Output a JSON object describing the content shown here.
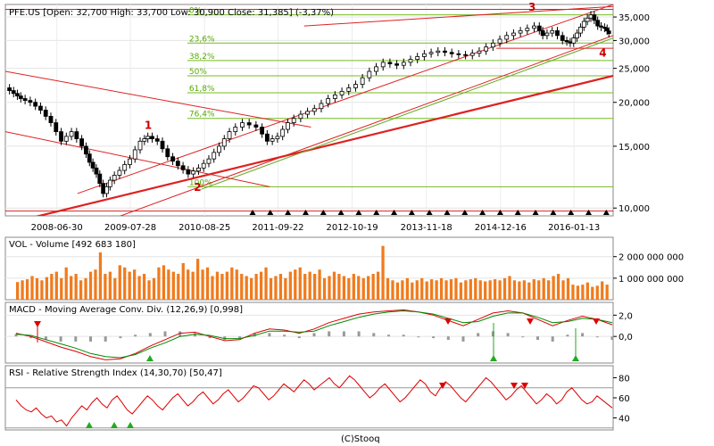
{
  "chart_data": [
    {
      "type": "line",
      "panel": "price",
      "title": "PFE.US [Open: 32,700  High: 33,700  Low: 30,900  Close: 31,385] (-3,37%)",
      "scale": "log",
      "ylim": [
        9.5,
        38
      ],
      "yticks": [
        "35,000",
        "30,000",
        "25,000",
        "20,000",
        "15,000",
        "10,000"
      ],
      "ytick_values": [
        35,
        30,
        25,
        20,
        15,
        10
      ],
      "xticks": [
        "2008-06-30",
        "2009-07-28",
        "2010-08-25",
        "2011-09-22",
        "2012-10-19",
        "2013-11-18",
        "2014-12-16",
        "2016-01-13"
      ],
      "xtick_years": [
        2008.5,
        2009.57,
        2010.65,
        2011.72,
        2012.8,
        2013.88,
        2014.96,
        2016.03
      ],
      "xlim": [
        2007.75,
        2016.6
      ],
      "series": [
        {
          "values": [
            {
              "x": 2007.78,
              "y": 22.0
            },
            {
              "x": 2007.9,
              "y": 21.2
            },
            {
              "x": 2008.0,
              "y": 20.5
            },
            {
              "x": 2008.15,
              "y": 20.0
            },
            {
              "x": 2008.3,
              "y": 19.0
            },
            {
              "x": 2008.45,
              "y": 17.5
            },
            {
              "x": 2008.6,
              "y": 15.5
            },
            {
              "x": 2008.75,
              "y": 16.5
            },
            {
              "x": 2008.9,
              "y": 15.0
            },
            {
              "x": 2009.0,
              "y": 13.5
            },
            {
              "x": 2009.1,
              "y": 12.5
            },
            {
              "x": 2009.2,
              "y": 11.0
            },
            {
              "x": 2009.3,
              "y": 12.0
            },
            {
              "x": 2009.45,
              "y": 12.8
            },
            {
              "x": 2009.6,
              "y": 13.8
            },
            {
              "x": 2009.75,
              "y": 15.5
            },
            {
              "x": 2009.85,
              "y": 16.0
            },
            {
              "x": 2010.0,
              "y": 15.5
            },
            {
              "x": 2010.15,
              "y": 14.0
            },
            {
              "x": 2010.3,
              "y": 13.2
            },
            {
              "x": 2010.45,
              "y": 12.5
            },
            {
              "x": 2010.6,
              "y": 13.0
            },
            {
              "x": 2010.75,
              "y": 13.8
            },
            {
              "x": 2010.9,
              "y": 15.0
            },
            {
              "x": 2011.05,
              "y": 16.5
            },
            {
              "x": 2011.25,
              "y": 17.5
            },
            {
              "x": 2011.45,
              "y": 17.0
            },
            {
              "x": 2011.6,
              "y": 15.5
            },
            {
              "x": 2011.75,
              "y": 16.0
            },
            {
              "x": 2011.9,
              "y": 17.5
            },
            {
              "x": 2012.1,
              "y": 18.5
            },
            {
              "x": 2012.3,
              "y": 19.2
            },
            {
              "x": 2012.5,
              "y": 20.5
            },
            {
              "x": 2012.7,
              "y": 21.5
            },
            {
              "x": 2012.9,
              "y": 22.5
            },
            {
              "x": 2013.1,
              "y": 24.5
            },
            {
              "x": 2013.3,
              "y": 26.0
            },
            {
              "x": 2013.5,
              "y": 25.5
            },
            {
              "x": 2013.7,
              "y": 26.5
            },
            {
              "x": 2013.9,
              "y": 27.5
            },
            {
              "x": 2014.1,
              "y": 28.0
            },
            {
              "x": 2014.3,
              "y": 27.5
            },
            {
              "x": 2014.5,
              "y": 27.2
            },
            {
              "x": 2014.7,
              "y": 28.0
            },
            {
              "x": 2014.9,
              "y": 29.5
            },
            {
              "x": 2015.1,
              "y": 31.0
            },
            {
              "x": 2015.3,
              "y": 32.0
            },
            {
              "x": 2015.5,
              "y": 33.0
            },
            {
              "x": 2015.6,
              "y": 31.0
            },
            {
              "x": 2015.75,
              "y": 32.0
            },
            {
              "x": 2015.9,
              "y": 30.0
            },
            {
              "x": 2016.0,
              "y": 29.5
            },
            {
              "x": 2016.1,
              "y": 31.5
            },
            {
              "x": 2016.2,
              "y": 34.0
            },
            {
              "x": 2016.3,
              "y": 35.5
            },
            {
              "x": 2016.4,
              "y": 33.0
            },
            {
              "x": 2016.5,
              "y": 32.5
            },
            {
              "x": 2016.55,
              "y": 31.4
            }
          ]
        }
      ],
      "fib_labels": [
        "0%",
        "23,6%",
        "38,2%",
        "50%",
        "61,8%",
        "76,4%",
        "100%"
      ],
      "fib_values": [
        35.5,
        29.5,
        26.3,
        23.8,
        21.3,
        18.0,
        11.5
      ],
      "wave_labels": [
        "1",
        "2",
        "3",
        "4"
      ],
      "wave_points": [
        {
          "x": 2009.83,
          "y": 16.8
        },
        {
          "x": 2010.55,
          "y": 11.2
        },
        {
          "x": 2015.42,
          "y": 36.5
        },
        {
          "x": 2016.45,
          "y": 27.0
        }
      ],
      "signal_count": 21
    },
    {
      "type": "bar",
      "panel": "volume",
      "title": "VOL - Volume [492 683 180]",
      "yticks": [
        "2 000 000 000",
        "1 000 000 000"
      ],
      "ytick_values": [
        2000,
        1000
      ],
      "ylim": [
        0,
        2900
      ],
      "unit": "millions",
      "values": [
        820,
        900,
        950,
        1100,
        1000,
        900,
        1050,
        1200,
        1300,
        1000,
        1500,
        1100,
        1200,
        900,
        1000,
        1300,
        1400,
        2200,
        1200,
        1300,
        1000,
        1600,
        1500,
        1300,
        1400,
        1100,
        1200,
        900,
        1000,
        1500,
        1600,
        1400,
        1300,
        1200,
        1700,
        1400,
        1300,
        1900,
        1400,
        1500,
        1100,
        1300,
        1200,
        1300,
        1500,
        1400,
        1200,
        1100,
        1000,
        1200,
        1300,
        1500,
        1000,
        1100,
        1200,
        1000,
        1300,
        1400,
        1500,
        1200,
        1300,
        1200,
        1400,
        1000,
        1100,
        1300,
        1200,
        1100,
        1000,
        1200,
        1100,
        1000,
        1100,
        1200,
        1300,
        2500,
        1000,
        900,
        800,
        900,
        1000,
        800,
        900,
        1000,
        850,
        950,
        900,
        1000,
        900,
        950,
        1000,
        800,
        900,
        950,
        1000,
        900,
        850,
        900,
        950,
        900,
        1000,
        1100,
        900,
        850,
        900,
        800,
        950,
        900,
        1000,
        900,
        1100,
        1200,
        900,
        1000,
        700,
        650,
        700,
        800,
        600,
        650,
        850,
        700
      ]
    },
    {
      "type": "line",
      "panel": "macd",
      "title": "MACD - Moving Average Conv. Div. (12,26,9) [0,998]",
      "yticks": [
        "2,0",
        "0,0"
      ],
      "ytick_values": [
        2,
        0
      ],
      "ylim": [
        -2.5,
        3.2
      ],
      "series": [
        {
          "values": [
            0.3,
            0.0,
            -0.5,
            -1.0,
            -1.4,
            -1.9,
            -2.2,
            -2.1,
            -1.6,
            -0.9,
            -0.3,
            0.3,
            0.4,
            0.0,
            -0.4,
            -0.3,
            0.3,
            0.7,
            0.6,
            0.3,
            0.7,
            1.3,
            1.7,
            2.1,
            2.3,
            2.4,
            2.5,
            2.3,
            2.0,
            1.5,
            1.0,
            1.6,
            2.2,
            2.4,
            2.2,
            1.6,
            1.0,
            1.5,
            1.9,
            1.6,
            1.1
          ],
          "color": "#dd0000"
        },
        {
          "values": [
            0.2,
            0.1,
            -0.3,
            -0.7,
            -1.1,
            -1.6,
            -1.9,
            -2.0,
            -1.7,
            -1.1,
            -0.6,
            0.0,
            0.2,
            0.1,
            -0.2,
            -0.2,
            0.1,
            0.5,
            0.5,
            0.4,
            0.5,
            1.0,
            1.4,
            1.8,
            2.1,
            2.3,
            2.4,
            2.3,
            2.1,
            1.7,
            1.3,
            1.4,
            1.9,
            2.2,
            2.2,
            1.8,
            1.3,
            1.4,
            1.7,
            1.6,
            1.3
          ],
          "color": "#008800"
        }
      ],
      "histogram": [
        0.15,
        -0.1,
        -0.2,
        -0.3,
        -0.3,
        -0.3,
        -0.3,
        -0.1,
        0.1,
        0.2,
        0.3,
        0.3,
        0.2,
        -0.1,
        -0.2,
        -0.1,
        0.2,
        0.2,
        0.1,
        -0.1,
        0.2,
        0.3,
        0.3,
        0.3,
        0.2,
        0.1,
        0.1,
        0.0,
        -0.1,
        -0.2,
        -0.3,
        0.2,
        0.3,
        0.2,
        0.0,
        -0.2,
        -0.3,
        0.1,
        0.2,
        0.0,
        -0.2
      ]
    },
    {
      "type": "line",
      "panel": "rsi",
      "title": "RSI - Relative Strength Index (14,30,70) [50,47]",
      "yticks": [
        "80",
        "60",
        "40"
      ],
      "ytick_values": [
        80,
        60,
        40
      ],
      "ylim": [
        28,
        92
      ],
      "levels": [
        70,
        30
      ],
      "values": [
        58,
        52,
        48,
        46,
        50,
        44,
        40,
        42,
        36,
        38,
        32,
        40,
        46,
        52,
        48,
        55,
        60,
        54,
        50,
        58,
        62,
        55,
        48,
        44,
        50,
        56,
        62,
        58,
        52,
        48,
        54,
        60,
        64,
        58,
        52,
        56,
        62,
        66,
        60,
        54,
        58,
        64,
        68,
        62,
        56,
        60,
        66,
        72,
        70,
        64,
        58,
        62,
        68,
        74,
        70,
        66,
        72,
        78,
        74,
        68,
        72,
        76,
        80,
        74,
        70,
        76,
        82,
        78,
        72,
        66,
        60,
        64,
        70,
        74,
        68,
        62,
        56,
        60,
        66,
        72,
        78,
        74,
        66,
        62,
        70,
        76,
        72,
        66,
        60,
        56,
        62,
        68,
        74,
        80,
        76,
        70,
        64,
        58,
        62,
        68,
        72,
        66,
        60,
        54,
        58,
        64,
        60,
        54,
        58,
        66,
        70,
        64,
        58,
        54,
        56,
        62,
        58,
        54,
        50
      ]
    }
  ],
  "footer": {
    "copyright": "(C)Stooq"
  }
}
